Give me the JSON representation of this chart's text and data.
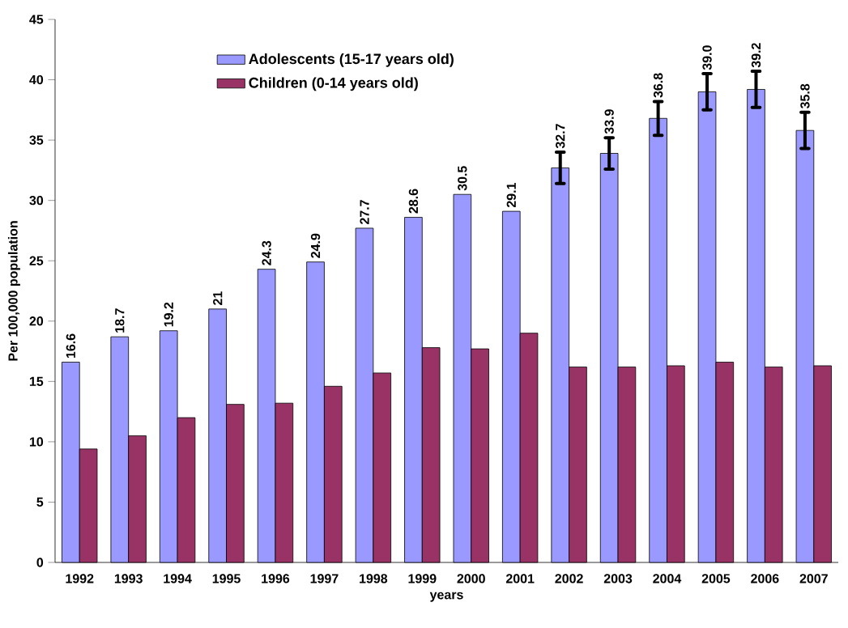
{
  "chart_data": {
    "type": "bar",
    "xlabel": "years",
    "ylabel": "Per 100,000 population",
    "categories": [
      "1992",
      "1993",
      "1994",
      "1995",
      "1996",
      "1997",
      "1998",
      "1999",
      "2000",
      "2001",
      "2002",
      "2003",
      "2004",
      "2005",
      "2006",
      "2007"
    ],
    "series": [
      {
        "name": "Adolescents (15-17 years old)",
        "color": "#9999ff",
        "values": [
          16.6,
          18.7,
          19.2,
          21,
          24.3,
          24.9,
          27.7,
          28.6,
          30.5,
          29.1,
          32.7,
          33.9,
          36.8,
          39.0,
          39.2,
          35.8
        ],
        "value_labels": [
          "16.6",
          "18.7",
          "19.2",
          "21",
          "24.3",
          "24.9",
          "27.7",
          "28.6",
          "30.5",
          "29.1",
          "32.7",
          "33.9",
          "36.8",
          "39.0",
          "39.2",
          "35.8"
        ],
        "errors": [
          null,
          null,
          null,
          null,
          null,
          null,
          null,
          null,
          null,
          null,
          1.3,
          1.3,
          1.4,
          1.5,
          1.5,
          1.5
        ]
      },
      {
        "name": "Children (0-14 years old)",
        "color": "#993366",
        "values": [
          9.4,
          10.5,
          12.0,
          13.1,
          13.2,
          14.6,
          15.7,
          17.8,
          17.7,
          19.0,
          16.2,
          16.2,
          16.3,
          16.6,
          16.2,
          16.3
        ]
      }
    ],
    "ylim": [
      0,
      45
    ],
    "yticks": [
      0,
      5,
      10,
      15,
      20,
      25,
      30,
      35,
      40,
      45
    ],
    "grid": false,
    "legend": "top left"
  }
}
